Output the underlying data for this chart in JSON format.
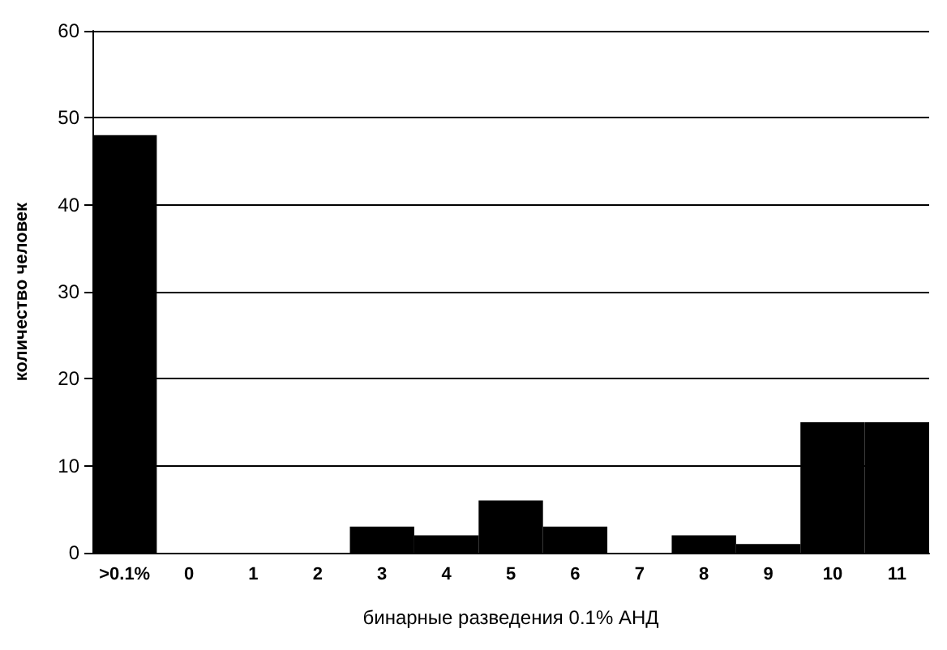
{
  "chart_data": {
    "type": "bar",
    "xlabel": "бинарные разведения 0.1% АНД",
    "ylabel": "количество человек",
    "categories": [
      ">0.1%",
      "0",
      "1",
      "2",
      "3",
      "4",
      "5",
      "6",
      "7",
      "8",
      "9",
      "10",
      "11"
    ],
    "values": [
      48,
      0,
      0,
      0,
      3,
      2,
      6,
      3,
      0,
      2,
      1,
      15,
      15
    ],
    "color": "#000000",
    "ylim": [
      0,
      60
    ],
    "yticks": [
      0,
      10,
      20,
      30,
      40,
      50,
      60
    ],
    "grid": "y"
  }
}
